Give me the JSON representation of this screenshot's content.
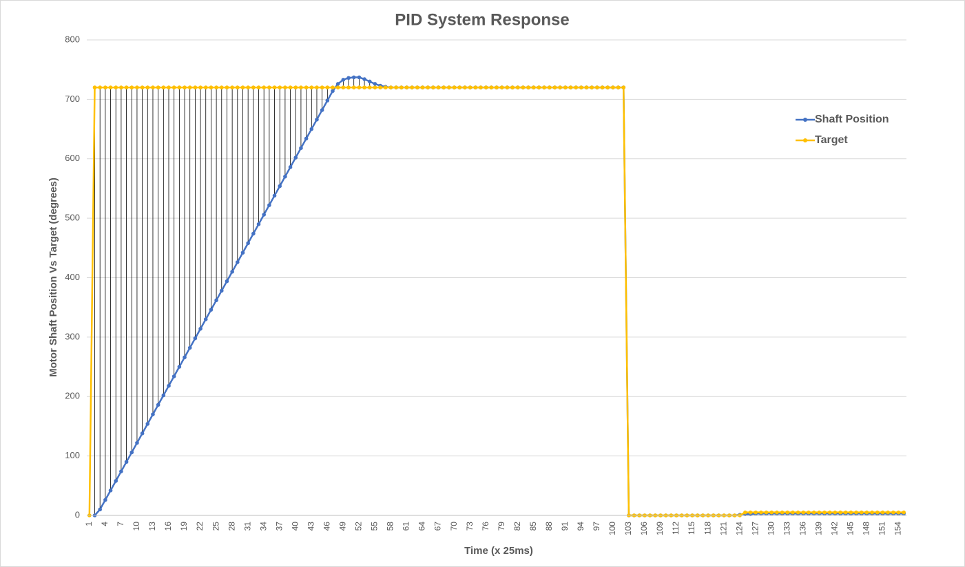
{
  "chart_data": {
    "type": "line",
    "title": "PID System Response",
    "x_label": "Time (x 25ms)",
    "y_label": "Motor Shaft Position Vs Target (degrees)",
    "categories": [
      1,
      null,
      null,
      4,
      null,
      null,
      7,
      null,
      null,
      10,
      null,
      null,
      13,
      null,
      null,
      16,
      null,
      null,
      19,
      null,
      null,
      22,
      null,
      null,
      25,
      null,
      null,
      28,
      null,
      null,
      31,
      null,
      null,
      34,
      null,
      null,
      37,
      null,
      null,
      40,
      null,
      null,
      43,
      null,
      null,
      46,
      null,
      null,
      49,
      null,
      null,
      52,
      null,
      null,
      55,
      null,
      null,
      58,
      null,
      null,
      61,
      null,
      null,
      64,
      null,
      null,
      67,
      null,
      null,
      70,
      null,
      null,
      73,
      null,
      null,
      76,
      null,
      null,
      79,
      null,
      null,
      82,
      null,
      null,
      85,
      null,
      null,
      88,
      null,
      null,
      91,
      null,
      null,
      94,
      null,
      null,
      97,
      null,
      null,
      100,
      null,
      null,
      103,
      null,
      null,
      106,
      null,
      null,
      109,
      null,
      null,
      112,
      null,
      null,
      115,
      null,
      null,
      118,
      null,
      null,
      121,
      null,
      null,
      124,
      null,
      null,
      127,
      null,
      null,
      130,
      null,
      null,
      133,
      null,
      null,
      136,
      null,
      null,
      139,
      null,
      null,
      142,
      null,
      null,
      145,
      null,
      null,
      148,
      null,
      null,
      151,
      null,
      null,
      154,
      null
    ],
    "series": [
      {
        "name": "Shaft Position",
        "color": "#4472c4",
        "values": [
          null,
          0,
          10,
          26,
          42,
          58,
          74,
          90,
          106,
          122,
          138,
          154,
          170,
          186,
          202,
          218,
          234,
          250,
          266,
          282,
          298,
          314,
          330,
          346,
          362,
          378,
          394,
          410,
          426,
          442,
          458,
          474,
          490,
          506,
          522,
          538,
          554,
          570,
          586,
          602,
          618,
          634,
          650,
          666,
          682,
          698,
          714,
          726,
          733,
          736,
          737,
          737,
          734,
          730,
          726,
          723,
          721,
          720,
          720,
          720,
          720,
          720,
          720,
          720,
          720,
          720,
          720,
          720,
          720,
          720,
          720,
          720,
          720,
          720,
          720,
          720,
          720,
          720,
          720,
          720,
          720,
          720,
          720,
          720,
          720,
          720,
          720,
          720,
          720,
          720,
          720,
          720,
          720,
          720,
          720,
          720,
          720,
          720,
          720,
          720,
          720,
          720,
          0,
          0,
          0,
          0,
          0,
          0,
          0,
          0,
          0,
          0,
          0,
          0,
          0,
          0,
          0,
          0,
          0,
          0,
          0,
          0,
          0,
          1,
          2,
          2,
          3,
          3,
          3,
          3,
          3,
          3,
          3,
          3,
          3,
          3,
          3,
          3,
          3,
          3,
          3,
          3,
          3,
          3,
          3,
          3,
          3,
          3,
          3,
          3,
          3,
          3,
          3,
          3,
          3
        ]
      },
      {
        "name": "Target",
        "color": "#ffc000",
        "values": [
          0,
          720,
          720,
          720,
          720,
          720,
          720,
          720,
          720,
          720,
          720,
          720,
          720,
          720,
          720,
          720,
          720,
          720,
          720,
          720,
          720,
          720,
          720,
          720,
          720,
          720,
          720,
          720,
          720,
          720,
          720,
          720,
          720,
          720,
          720,
          720,
          720,
          720,
          720,
          720,
          720,
          720,
          720,
          720,
          720,
          720,
          720,
          720,
          720,
          720,
          720,
          720,
          720,
          720,
          720,
          720,
          720,
          720,
          720,
          720,
          720,
          720,
          720,
          720,
          720,
          720,
          720,
          720,
          720,
          720,
          720,
          720,
          720,
          720,
          720,
          720,
          720,
          720,
          720,
          720,
          720,
          720,
          720,
          720,
          720,
          720,
          720,
          720,
          720,
          720,
          720,
          720,
          720,
          720,
          720,
          720,
          720,
          720,
          720,
          720,
          720,
          720,
          0,
          0,
          0,
          0,
          0,
          0,
          0,
          0,
          0,
          0,
          0,
          0,
          0,
          0,
          0,
          0,
          0,
          0,
          0,
          0,
          0,
          0,
          5,
          5,
          5,
          5,
          5,
          5,
          5,
          5,
          5,
          5,
          5,
          5,
          5,
          5,
          5,
          5,
          5,
          5,
          5,
          5,
          5,
          5,
          5,
          5,
          5,
          5,
          5,
          5,
          5,
          5,
          5
        ]
      }
    ],
    "ylim": [
      0,
      800
    ],
    "yticks": [
      0,
      100,
      200,
      300,
      400,
      500,
      600,
      700,
      800
    ],
    "grid": true,
    "legend": "right",
    "high_low_lines": true
  }
}
